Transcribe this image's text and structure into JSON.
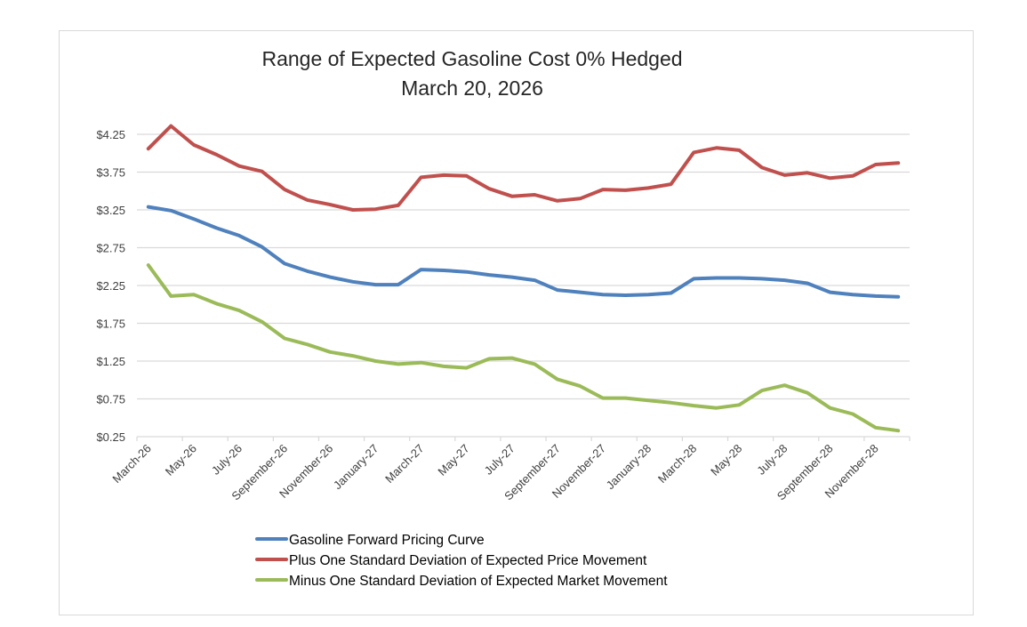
{
  "chart_data": {
    "type": "line",
    "title": "Range of Expected Gasoline Cost 0% Hedged",
    "subtitle": "March 20, 2026",
    "xlabel": "",
    "ylabel": "",
    "ylim": [
      0.25,
      4.25
    ],
    "y_ticks": [
      "$0.25",
      "$0.75",
      "$1.25",
      "$1.75",
      "$2.25",
      "$2.75",
      "$3.25",
      "$3.75",
      "$4.25"
    ],
    "y_tick_values": [
      0.25,
      0.75,
      1.25,
      1.75,
      2.25,
      2.75,
      3.25,
      3.75,
      4.25
    ],
    "grid": true,
    "legend_position": "bottom",
    "x": [
      "March-26",
      "April-26",
      "May-26",
      "June-26",
      "July-26",
      "August-26",
      "September-26",
      "October-26",
      "November-26",
      "December-26",
      "January-27",
      "February-27",
      "March-27",
      "April-27",
      "May-27",
      "June-27",
      "July-27",
      "August-27",
      "September-27",
      "October-27",
      "November-27",
      "December-27",
      "January-28",
      "February-28",
      "March-28",
      "April-28",
      "May-28",
      "June-28",
      "July-28",
      "August-28",
      "September-28",
      "October-28",
      "November-28",
      "December-28"
    ],
    "x_tick_labels": [
      "March-26",
      "May-26",
      "July-26",
      "September-26",
      "November-26",
      "January-27",
      "March-27",
      "May-27",
      "July-27",
      "September-27",
      "November-27",
      "January-28",
      "March-28",
      "May-28",
      "July-28",
      "September-28",
      "November-28"
    ],
    "series": [
      {
        "name": "Gasoline Forward Pricing Curve",
        "color": "#4f81bd",
        "values": [
          3.29,
          3.24,
          3.13,
          3.01,
          2.91,
          2.76,
          2.54,
          2.44,
          2.36,
          2.3,
          2.26,
          2.26,
          2.46,
          2.45,
          2.43,
          2.39,
          2.36,
          2.32,
          2.19,
          2.16,
          2.13,
          2.12,
          2.13,
          2.15,
          2.34,
          2.35,
          2.35,
          2.34,
          2.32,
          2.28,
          2.16,
          2.13,
          2.11,
          2.1
        ]
      },
      {
        "name": "Plus One Standard Deviation of Expected Price Movement",
        "color": "#c0504d",
        "values": [
          4.06,
          4.36,
          4.11,
          3.98,
          3.83,
          3.76,
          3.52,
          3.38,
          3.32,
          3.25,
          3.26,
          3.31,
          3.68,
          3.71,
          3.7,
          3.53,
          3.43,
          3.45,
          3.37,
          3.4,
          3.52,
          3.51,
          3.54,
          3.59,
          4.01,
          4.07,
          4.04,
          3.81,
          3.71,
          3.74,
          3.67,
          3.7,
          3.85,
          3.87
        ]
      },
      {
        "name": "Minus One Standard Deviation of Expected Market Movement",
        "color": "#9bbb59",
        "values": [
          2.52,
          2.11,
          2.13,
          2.01,
          1.92,
          1.77,
          1.55,
          1.47,
          1.37,
          1.32,
          1.25,
          1.21,
          1.23,
          1.18,
          1.16,
          1.28,
          1.29,
          1.21,
          1.01,
          0.92,
          0.76,
          0.76,
          0.73,
          0.7,
          0.66,
          0.63,
          0.67,
          0.86,
          0.93,
          0.83,
          0.63,
          0.55,
          0.37,
          0.33
        ]
      }
    ]
  }
}
